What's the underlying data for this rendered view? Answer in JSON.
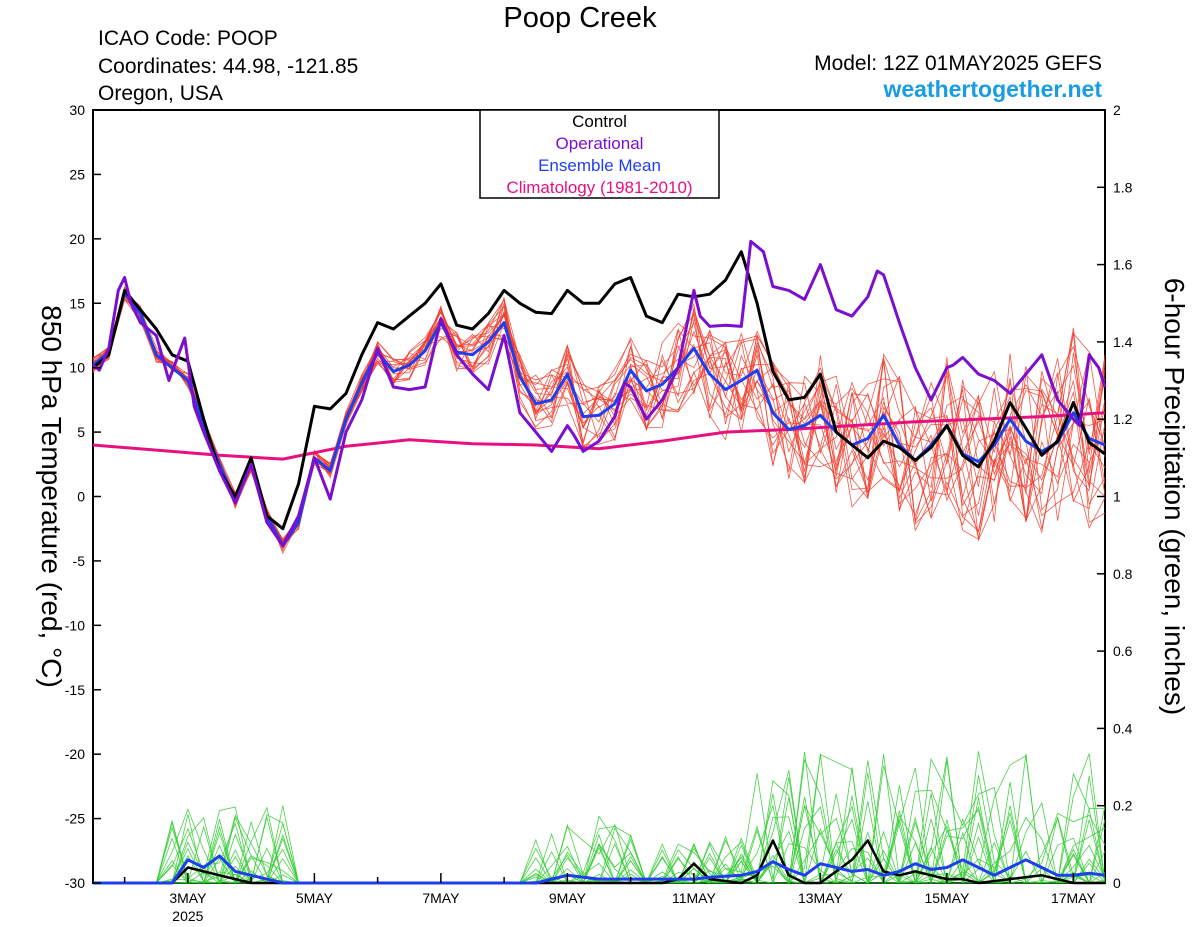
{
  "header": {
    "title": "Poop Creek",
    "icao": "ICAO Code: POOP",
    "coords": "Coordinates: 44.98, -121.85",
    "region": "Oregon, USA",
    "model": "Model: 12Z 01MAY2025 GEFS",
    "brand": "weathertogether.net"
  },
  "colors": {
    "control": "#000000",
    "operational": "#7b0fd0",
    "ensemble_mean": "#1e3ff0",
    "climatology": "#e8107f",
    "members_temp": "#f03c2c",
    "members_precip": "#33cc33",
    "brand": "#1a9be6"
  },
  "chart_data": {
    "type": "line",
    "ylabel": "850 hPa Temperature (red, °C)",
    "ylabel2": "6-hour Precipitation (green, inches)",
    "ylim": [
      -30,
      30
    ],
    "ylim2": [
      0,
      2
    ],
    "yticks": [
      30,
      25,
      20,
      15,
      10,
      5,
      0,
      -5,
      -10,
      -15,
      -20,
      -25,
      -30
    ],
    "yticks2": [
      "2",
      "1.8",
      "1.6",
      "1.4",
      "1.2",
      "1",
      "0.8",
      "0.6",
      "0.4",
      "0.2",
      "0"
    ],
    "xlim": [
      1.5,
      17.5
    ],
    "xticks": [
      {
        "d": 3,
        "label": "3MAY",
        "sub": "2025"
      },
      {
        "d": 5,
        "label": "5MAY"
      },
      {
        "d": 7,
        "label": "7MAY"
      },
      {
        "d": 9,
        "label": "9MAY"
      },
      {
        "d": 11,
        "label": "11MAY"
      },
      {
        "d": 13,
        "label": "13MAY"
      },
      {
        "d": 15,
        "label": "15MAY"
      },
      {
        "d": 17,
        "label": "17MAY"
      }
    ],
    "legend": {
      "position": "top-center",
      "items": [
        {
          "label": "Control",
          "color": "#000000"
        },
        {
          "label": "Operational",
          "color": "#7b0fd0"
        },
        {
          "label": "Ensemble Mean",
          "color": "#1e3ff0"
        },
        {
          "label": "Climatology (1981-2010)",
          "color": "#e8107f"
        }
      ]
    },
    "temperature_series": [
      {
        "name": "Control",
        "points": [
          [
            1.5,
            10
          ],
          [
            1.75,
            11
          ],
          [
            2,
            16
          ],
          [
            2.25,
            14.5
          ],
          [
            2.5,
            13
          ],
          [
            2.75,
            11
          ],
          [
            3,
            10.5
          ],
          [
            3.25,
            6
          ],
          [
            3.5,
            2
          ],
          [
            3.75,
            0
          ],
          [
            4,
            3
          ],
          [
            4.25,
            -1.5
          ],
          [
            4.5,
            -2.5
          ],
          [
            4.75,
            1
          ],
          [
            5,
            7
          ],
          [
            5.25,
            6.8
          ],
          [
            5.5,
            8
          ],
          [
            5.75,
            11
          ],
          [
            6,
            13.5
          ],
          [
            6.25,
            13
          ],
          [
            6.5,
            14
          ],
          [
            6.75,
            15
          ],
          [
            7,
            16.5
          ],
          [
            7.25,
            13.3
          ],
          [
            7.5,
            13
          ],
          [
            7.75,
            14.2
          ],
          [
            8,
            16
          ],
          [
            8.25,
            15
          ],
          [
            8.5,
            14.3
          ],
          [
            8.75,
            14.2
          ],
          [
            9,
            16
          ],
          [
            9.25,
            15
          ],
          [
            9.5,
            15
          ],
          [
            9.75,
            16.5
          ],
          [
            10,
            17
          ],
          [
            10.25,
            14
          ],
          [
            10.5,
            13.5
          ],
          [
            10.75,
            15.7
          ],
          [
            11,
            15.5
          ],
          [
            11.25,
            15.7
          ],
          [
            11.5,
            16.8
          ],
          [
            11.75,
            19
          ],
          [
            12,
            15
          ],
          [
            12.25,
            9.7
          ],
          [
            12.5,
            7.5
          ],
          [
            12.75,
            7.7
          ],
          [
            13,
            9.5
          ],
          [
            13.25,
            5
          ],
          [
            13.5,
            4
          ],
          [
            13.75,
            3
          ],
          [
            14,
            4.3
          ],
          [
            14.25,
            3.8
          ],
          [
            14.5,
            2.8
          ],
          [
            14.75,
            3.8
          ],
          [
            15,
            5.5
          ],
          [
            15.25,
            3.2
          ],
          [
            15.5,
            2.3
          ],
          [
            15.75,
            4.3
          ],
          [
            16,
            7.3
          ],
          [
            16.25,
            5.3
          ],
          [
            16.5,
            3.2
          ],
          [
            16.75,
            4.3
          ],
          [
            17,
            7.3
          ],
          [
            17.25,
            4.2
          ],
          [
            17.5,
            3.3
          ]
        ]
      },
      {
        "name": "Operational",
        "points": [
          [
            1.5,
            10.2
          ],
          [
            1.6,
            9.8
          ],
          [
            1.75,
            11.5
          ],
          [
            1.9,
            16
          ],
          [
            2,
            17
          ],
          [
            2.1,
            15
          ],
          [
            2.25,
            13.5
          ],
          [
            2.5,
            12.5
          ],
          [
            2.7,
            9
          ],
          [
            2.85,
            11
          ],
          [
            2.95,
            12.3
          ],
          [
            3.1,
            7
          ],
          [
            3.25,
            5
          ],
          [
            3.5,
            2
          ],
          [
            3.75,
            -0.5
          ],
          [
            4,
            2.5
          ],
          [
            4.25,
            -2
          ],
          [
            4.5,
            -3.8
          ],
          [
            4.75,
            -1.5
          ],
          [
            5,
            3
          ],
          [
            5.25,
            -0.2
          ],
          [
            5.5,
            5
          ],
          [
            5.75,
            7.5
          ],
          [
            6,
            11.5
          ],
          [
            6.25,
            8.5
          ],
          [
            6.5,
            8.3
          ],
          [
            6.75,
            8.5
          ],
          [
            7,
            13.8
          ],
          [
            7.25,
            11
          ],
          [
            7.5,
            9.5
          ],
          [
            7.75,
            8.3
          ],
          [
            8,
            12.5
          ],
          [
            8.25,
            6.5
          ],
          [
            8.5,
            5
          ],
          [
            8.75,
            3.5
          ],
          [
            9,
            5.5
          ],
          [
            9.1,
            4.8
          ],
          [
            9.25,
            3.5
          ],
          [
            9.5,
            4.3
          ],
          [
            9.75,
            6.2
          ],
          [
            9.9,
            8.8
          ],
          [
            10,
            8.5
          ],
          [
            10.25,
            6
          ],
          [
            10.5,
            7.5
          ],
          [
            10.75,
            10
          ],
          [
            11,
            16
          ],
          [
            11.1,
            14
          ],
          [
            11.25,
            13.2
          ],
          [
            11.5,
            13.3
          ],
          [
            11.75,
            13.2
          ],
          [
            11.9,
            19.8
          ],
          [
            12.1,
            19
          ],
          [
            12.25,
            16.3
          ],
          [
            12.5,
            16
          ],
          [
            12.75,
            15.3
          ],
          [
            13,
            18
          ],
          [
            13.25,
            14.5
          ],
          [
            13.5,
            14
          ],
          [
            13.75,
            15.5
          ],
          [
            13.9,
            17.5
          ],
          [
            14,
            17.2
          ],
          [
            14.25,
            13.5
          ],
          [
            14.5,
            10
          ],
          [
            14.75,
            7.5
          ],
          [
            15,
            10
          ],
          [
            15.1,
            10.2
          ],
          [
            15.25,
            10.8
          ],
          [
            15.5,
            9.5
          ],
          [
            15.75,
            9
          ],
          [
            16,
            8
          ],
          [
            16.25,
            9.5
          ],
          [
            16.5,
            11
          ],
          [
            16.75,
            7.5
          ],
          [
            17,
            6
          ],
          [
            17.1,
            5.5
          ],
          [
            17.25,
            11
          ],
          [
            17.4,
            10
          ],
          [
            17.5,
            8.5
          ]
        ]
      },
      {
        "name": "Ensemble Mean",
        "points": [
          [
            1.5,
            10.2
          ],
          [
            1.75,
            11.2
          ],
          [
            2,
            15.8
          ],
          [
            2.25,
            14.2
          ],
          [
            2.5,
            11
          ],
          [
            2.75,
            10
          ],
          [
            3,
            9
          ],
          [
            3.25,
            5.5
          ],
          [
            3.5,
            2.5
          ],
          [
            3.75,
            -0.3
          ],
          [
            4,
            2.5
          ],
          [
            4.25,
            -1.5
          ],
          [
            4.5,
            -3.8
          ],
          [
            4.75,
            -2
          ],
          [
            5,
            3
          ],
          [
            5.25,
            2
          ],
          [
            5.5,
            6
          ],
          [
            5.75,
            8.8
          ],
          [
            6,
            11.2
          ],
          [
            6.25,
            9.7
          ],
          [
            6.5,
            10.2
          ],
          [
            6.75,
            11.3
          ],
          [
            7,
            13.5
          ],
          [
            7.25,
            11.2
          ],
          [
            7.5,
            11
          ],
          [
            7.75,
            12
          ],
          [
            8,
            13.5
          ],
          [
            8.25,
            9.3
          ],
          [
            8.5,
            7.2
          ],
          [
            8.75,
            7.5
          ],
          [
            9,
            9.5
          ],
          [
            9.25,
            6.2
          ],
          [
            9.5,
            6.3
          ],
          [
            9.75,
            7.2
          ],
          [
            10,
            9.8
          ],
          [
            10.25,
            8.2
          ],
          [
            10.5,
            8.7
          ],
          [
            10.75,
            10
          ],
          [
            11,
            11.5
          ],
          [
            11.25,
            9.5
          ],
          [
            11.5,
            8.3
          ],
          [
            11.75,
            9
          ],
          [
            12,
            9.8
          ],
          [
            12.25,
            6.5
          ],
          [
            12.5,
            5.2
          ],
          [
            12.75,
            5.5
          ],
          [
            13,
            6.3
          ],
          [
            13.25,
            5
          ],
          [
            13.5,
            4
          ],
          [
            13.75,
            4.5
          ],
          [
            14,
            6.3
          ],
          [
            14.25,
            4
          ],
          [
            14.5,
            2.8
          ],
          [
            14.75,
            4
          ],
          [
            15,
            5.5
          ],
          [
            15.25,
            3.3
          ],
          [
            15.5,
            2.7
          ],
          [
            15.75,
            4
          ],
          [
            16,
            6
          ],
          [
            16.25,
            4.3
          ],
          [
            16.5,
            3.5
          ],
          [
            16.75,
            4.2
          ],
          [
            17,
            6.5
          ],
          [
            17.25,
            4.5
          ],
          [
            17.5,
            4
          ]
        ]
      },
      {
        "name": "Climatology (1981-2010)",
        "points": [
          [
            1.5,
            4
          ],
          [
            2.5,
            3.6
          ],
          [
            3.5,
            3.2
          ],
          [
            4.5,
            2.9
          ],
          [
            5.5,
            3.9
          ],
          [
            6.5,
            4.4
          ],
          [
            7.5,
            4.1
          ],
          [
            8.5,
            4
          ],
          [
            9.5,
            3.7
          ],
          [
            10.5,
            4.3
          ],
          [
            11.5,
            5
          ],
          [
            12.5,
            5.2
          ],
          [
            13.5,
            5.5
          ],
          [
            14.5,
            5.8
          ],
          [
            15.5,
            6
          ],
          [
            16.5,
            6.2
          ],
          [
            17.5,
            6.5
          ]
        ]
      }
    ],
    "precip_series": [
      {
        "name": "Control",
        "points": [
          [
            1.5,
            0
          ],
          [
            2.75,
            0
          ],
          [
            3,
            0.04
          ],
          [
            3.25,
            0.03
          ],
          [
            3.5,
            0.02
          ],
          [
            3.75,
            0.01
          ],
          [
            4,
            0
          ],
          [
            10.5,
            0
          ],
          [
            10.75,
            0.01
          ],
          [
            11,
            0.05
          ],
          [
            11.25,
            0.01
          ],
          [
            11.75,
            0
          ],
          [
            12,
            0.02
          ],
          [
            12.25,
            0.11
          ],
          [
            12.5,
            0.02
          ],
          [
            12.75,
            0
          ],
          [
            13,
            0
          ],
          [
            13.25,
            0.03
          ],
          [
            13.5,
            0.06
          ],
          [
            13.75,
            0.11
          ],
          [
            14,
            0.03
          ],
          [
            14.25,
            0.02
          ],
          [
            14.5,
            0.03
          ],
          [
            14.75,
            0.02
          ],
          [
            15,
            0.01
          ],
          [
            15.25,
            0.01
          ],
          [
            15.5,
            0
          ],
          [
            16,
            0.01
          ],
          [
            16.5,
            0.02
          ],
          [
            17,
            0
          ],
          [
            17.5,
            0
          ]
        ]
      },
      {
        "name": "Ensemble Mean",
        "points": [
          [
            1.5,
            0
          ],
          [
            2.75,
            0
          ],
          [
            3,
            0.06
          ],
          [
            3.25,
            0.04
          ],
          [
            3.5,
            0.07
          ],
          [
            3.75,
            0.03
          ],
          [
            4,
            0.02
          ],
          [
            4.25,
            0.01
          ],
          [
            4.5,
            0
          ],
          [
            8.5,
            0
          ],
          [
            9,
            0.02
          ],
          [
            9.5,
            0.01
          ],
          [
            10,
            0.01
          ],
          [
            10.5,
            0.01
          ],
          [
            11,
            0.01
          ],
          [
            11.25,
            0.015
          ],
          [
            11.75,
            0.02
          ],
          [
            12,
            0.03
          ],
          [
            12.25,
            0.055
          ],
          [
            12.5,
            0.035
          ],
          [
            12.75,
            0.02
          ],
          [
            13,
            0.05
          ],
          [
            13.25,
            0.04
          ],
          [
            13.5,
            0.03
          ],
          [
            13.75,
            0.035
          ],
          [
            14,
            0.02
          ],
          [
            14.25,
            0.03
          ],
          [
            14.5,
            0.05
          ],
          [
            14.75,
            0.035
          ],
          [
            15,
            0.04
          ],
          [
            15.25,
            0.06
          ],
          [
            15.5,
            0.04
          ],
          [
            15.75,
            0.02
          ],
          [
            16,
            0.04
          ],
          [
            16.25,
            0.06
          ],
          [
            16.5,
            0.04
          ],
          [
            16.75,
            0.02
          ],
          [
            17,
            0.02
          ],
          [
            17.25,
            0.025
          ],
          [
            17.5,
            0.02
          ]
        ]
      }
    ]
  }
}
